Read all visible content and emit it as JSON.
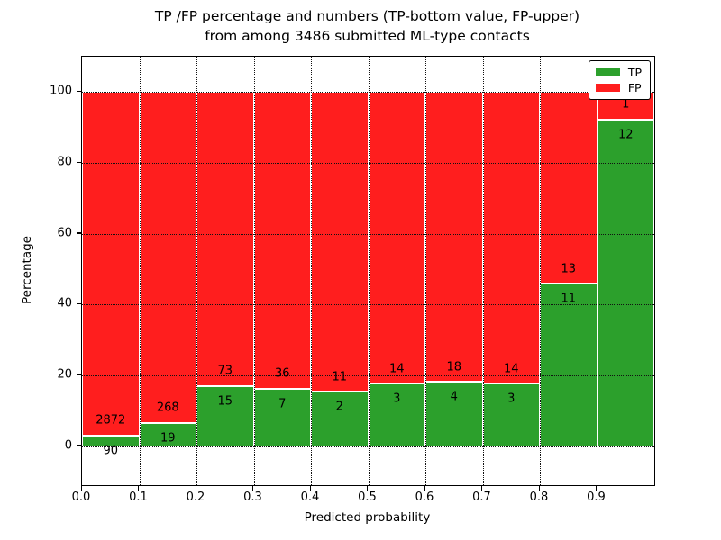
{
  "chart_data": {
    "type": "bar",
    "stacked": true,
    "title_line1": "TP /FP percentage and numbers (TP-bottom value, FP-upper)",
    "title_line2": "from among 3486 submitted ML-type contacts",
    "xlabel": "Predicted probability",
    "ylabel": "Percentage",
    "total_contacts": 3486,
    "xlim": [
      0,
      1
    ],
    "ylim": [
      -11,
      110
    ],
    "xticks": [
      "0.0",
      "0.1",
      "0.2",
      "0.3",
      "0.4",
      "0.5",
      "0.6",
      "0.7",
      "0.8",
      "0.9"
    ],
    "yticks": [
      0,
      20,
      40,
      60,
      80,
      100
    ],
    "bin_edges": [
      0,
      0.1,
      0.2,
      0.3,
      0.4,
      0.5,
      0.6,
      0.7,
      0.8,
      0.9,
      1.0
    ],
    "categories": [
      "0.0-0.1",
      "0.1-0.2",
      "0.2-0.3",
      "0.3-0.4",
      "0.4-0.5",
      "0.5-0.6",
      "0.6-0.7",
      "0.7-0.8",
      "0.8-0.9",
      "0.9-1.0"
    ],
    "series": [
      {
        "name": "TP",
        "color": "#2ca02c",
        "counts": [
          90,
          19,
          15,
          7,
          2,
          3,
          4,
          3,
          11,
          12
        ]
      },
      {
        "name": "FP",
        "color": "#ff1e1e",
        "counts": [
          2872,
          268,
          73,
          36,
          11,
          14,
          18,
          14,
          13,
          1
        ]
      }
    ],
    "tp_percent": [
      3.0,
      6.6,
      17.0,
      16.3,
      15.4,
      17.6,
      18.2,
      17.6,
      45.8,
      92.3
    ],
    "grid": "dotted",
    "legend_position": "upper right",
    "axis_color": "#000000",
    "background_color": "#ffffff"
  }
}
